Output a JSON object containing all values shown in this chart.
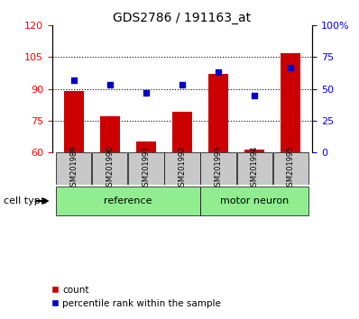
{
  "title": "GDS2786 / 191163_at",
  "samples": [
    "GSM201989",
    "GSM201990",
    "GSM201991",
    "GSM201992",
    "GSM201993",
    "GSM201994",
    "GSM201995"
  ],
  "bar_values": [
    89,
    77,
    65,
    79,
    97,
    61,
    107
  ],
  "percentile_values": [
    57,
    53,
    47,
    53,
    63,
    45,
    67
  ],
  "ylim_left": [
    60,
    120
  ],
  "ylim_right": [
    0,
    100
  ],
  "yticks_left": [
    60,
    75,
    90,
    105,
    120
  ],
  "yticks_right": [
    0,
    25,
    50,
    75,
    100
  ],
  "ytick_labels_right": [
    "0",
    "25",
    "50",
    "75",
    "100%"
  ],
  "hlines": [
    75,
    90,
    105
  ],
  "bar_color": "#cc0000",
  "scatter_color": "#0000cc",
  "ref_color": "#90ee90",
  "motor_color": "#90ee90",
  "label_bg_color": "#c8c8c8",
  "ref_label": "reference",
  "motor_label": "motor neuron",
  "ref_indices": [
    0,
    1,
    2,
    3
  ],
  "motor_indices": [
    4,
    5,
    6
  ],
  "cell_type_label": "cell type",
  "legend_bar_label": "count",
  "legend_scatter_label": "percentile rank within the sample",
  "bar_bottom": 60,
  "bar_width": 0.55
}
